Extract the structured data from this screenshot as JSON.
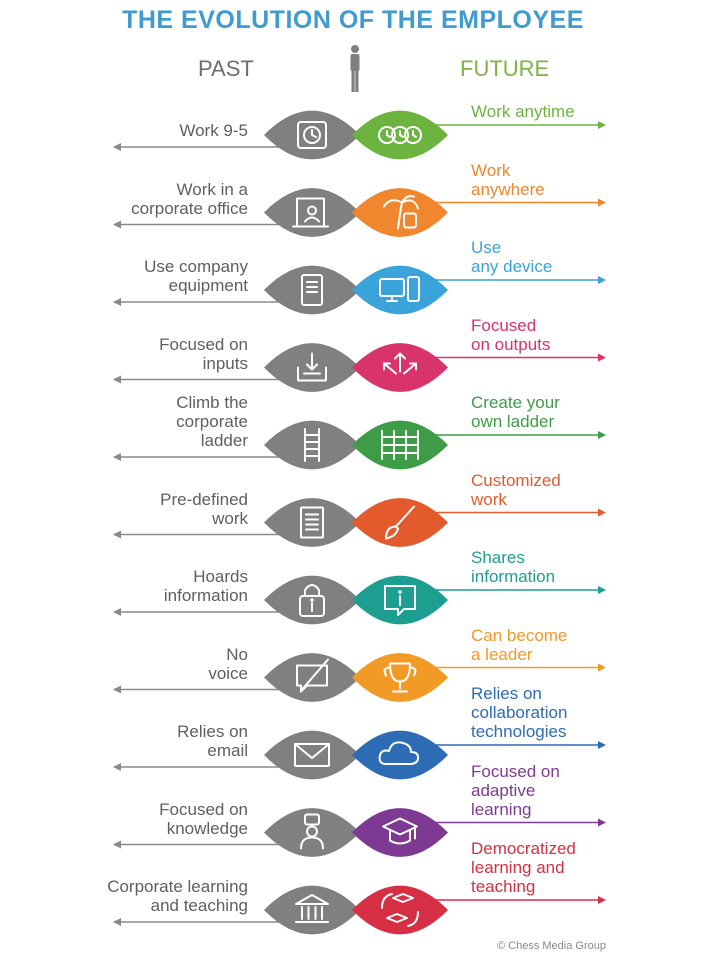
{
  "title": "THE EVOLUTION OF THE EMPLOYEE",
  "past_label": "PAST",
  "future_label": "FUTURE",
  "credit": "© Chess Media Group",
  "colors": {
    "title": "#3f9bd0",
    "past_gray": "#808080",
    "person": "#7f7f7f",
    "future_label": "#7cb342"
  },
  "rows": [
    {
      "past": [
        "Work 9-5"
      ],
      "future": [
        "Work anytime"
      ],
      "color": "#6cb33f",
      "past_icon": "clock-icon",
      "future_icon": "three-clocks-icon"
    },
    {
      "past": [
        "Work in a",
        "corporate office"
      ],
      "future": [
        "Work",
        "anywhere"
      ],
      "color": "#f0862d",
      "past_icon": "office-door-icon",
      "future_icon": "palm-tree-icon"
    },
    {
      "past": [
        "Use company",
        "equipment"
      ],
      "future": [
        "Use",
        "any device"
      ],
      "color": "#3aa3d9",
      "past_icon": "server-tower-icon",
      "future_icon": "devices-icon"
    },
    {
      "past": [
        "Focused on",
        "inputs"
      ],
      "future": [
        "Focused",
        "on outputs"
      ],
      "color": "#d9336b",
      "past_icon": "inbox-arrow-icon",
      "future_icon": "outward-arrows-icon"
    },
    {
      "past": [
        "Climb the",
        "corporate",
        "ladder"
      ],
      "future": [
        "Create your",
        "own ladder"
      ],
      "color": "#3e9c46",
      "past_icon": "ladder-icon",
      "future_icon": "multi-ladder-icon"
    },
    {
      "past": [
        "Pre-defined",
        "work"
      ],
      "future": [
        "Customized",
        "work"
      ],
      "color": "#e35a2c",
      "past_icon": "document-icon",
      "future_icon": "paintbrush-icon"
    },
    {
      "past": [
        "Hoards",
        "information"
      ],
      "future": [
        "Shares",
        "information"
      ],
      "color": "#1e9e91",
      "past_icon": "padlock-info-icon",
      "future_icon": "info-bubble-icon"
    },
    {
      "past": [
        "No",
        "voice"
      ],
      "future": [
        "Can become",
        "a leader"
      ],
      "color": "#f29a26",
      "past_icon": "muted-chat-icon",
      "future_icon": "trophy-icon"
    },
    {
      "past": [
        "Relies on",
        "email"
      ],
      "future": [
        "Relies on",
        "collaboration",
        "technologies"
      ],
      "color": "#2d6bb5",
      "past_icon": "envelope-icon",
      "future_icon": "cloud-icon"
    },
    {
      "past": [
        "Focused on",
        "knowledge"
      ],
      "future": [
        "Focused on",
        "adaptive",
        "learning"
      ],
      "color": "#7e3a92",
      "past_icon": "teacher-icon",
      "future_icon": "graduation-cap-icon"
    },
    {
      "past": [
        "Corporate learning",
        "and teaching"
      ],
      "future": [
        "Democratized",
        "learning and",
        "teaching"
      ],
      "color": "#d62f43",
      "past_icon": "institution-icon",
      "future_icon": "caps-cycle-icon"
    }
  ]
}
